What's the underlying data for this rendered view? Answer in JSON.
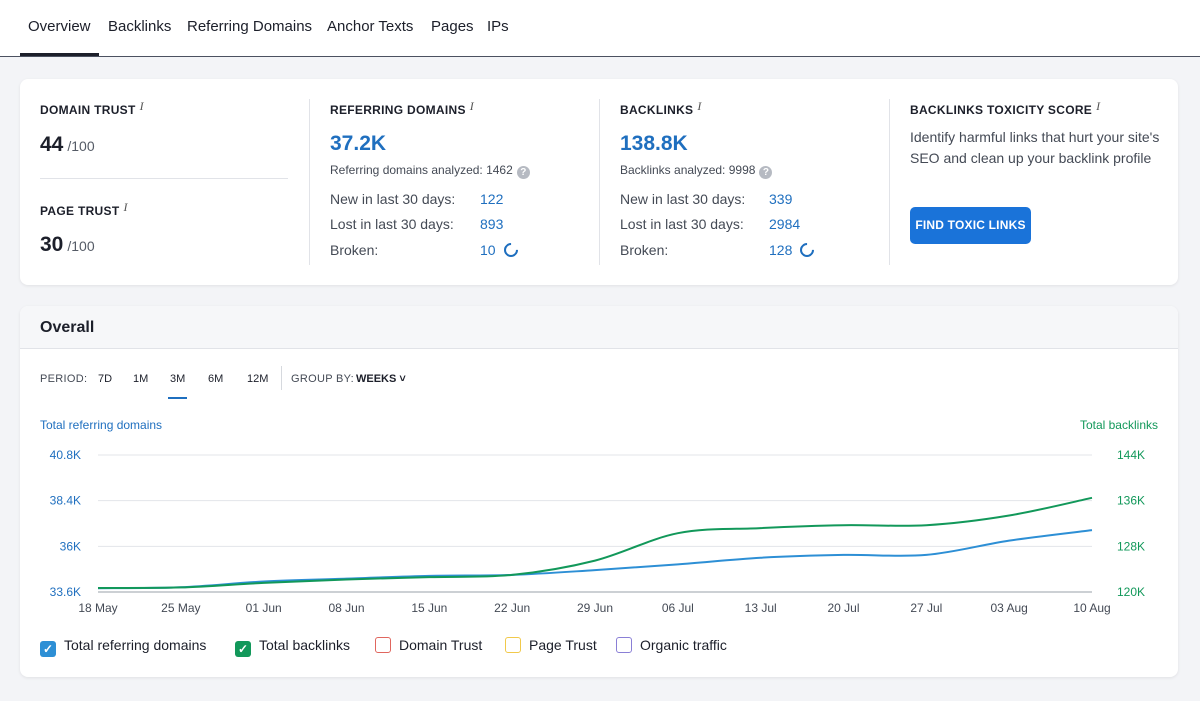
{
  "tabs": [
    "Overview",
    "Backlinks",
    "Referring Domains",
    "Anchor Texts",
    "Pages",
    "IPs"
  ],
  "domain_trust": {
    "label": "DOMAIN TRUST",
    "info": "i",
    "value": "44",
    "denominator": "/100"
  },
  "page_trust": {
    "label": "PAGE TRUST",
    "info": "i",
    "value": "30",
    "denominator": "/100"
  },
  "referring_domains": {
    "label": "REFERRING DOMAINS",
    "info": "i",
    "value": "37.2K",
    "analyzed": "Referring domains analyzed: 1462",
    "help": "?",
    "rows": [
      {
        "label": "New in last 30 days:",
        "value": "122"
      },
      {
        "label": "Lost in last 30 days:",
        "value": "893"
      },
      {
        "label": "Broken:",
        "value": "10"
      }
    ]
  },
  "backlinks": {
    "label": "BACKLINKS",
    "info": "i",
    "value": "138.8K",
    "analyzed": "Backlinks analyzed: 9998",
    "help": "?",
    "rows": [
      {
        "label": "New in last 30 days:",
        "value": "339"
      },
      {
        "label": "Lost in last 30 days:",
        "value": "2984"
      },
      {
        "label": "Broken:",
        "value": "128"
      }
    ]
  },
  "toxicity": {
    "label": "BACKLINKS TOXICITY SCORE",
    "info": "i",
    "description": "Identify harmful links that hurt your site's SEO and clean up your backlink profile",
    "button": "FIND TOXIC LINKS"
  },
  "overall": {
    "title": "Overall",
    "period_label": "PERIOD:",
    "periods": [
      "7D",
      "1M",
      "3M",
      "6M",
      "12M"
    ],
    "active_period": "3M",
    "group_label": "GROUP BY:",
    "group_value": "WEEKS",
    "chevron": "˅"
  },
  "colors": {
    "blue": "#2d8fd5",
    "green": "#12985a",
    "link": "#1f6fbf",
    "red": "#e0665e",
    "yellow": "#f1c94b",
    "purple": "#8a7fd6"
  },
  "chart_data": {
    "type": "line",
    "left_axis_title": "Total referring domains",
    "right_axis_title": "Total backlinks",
    "x": [
      "18 May",
      "25 May",
      "01 Jun",
      "08 Jun",
      "15 Jun",
      "22 Jun",
      "29 Jun",
      "06 Jul",
      "13 Jul",
      "20 Jul",
      "27 Jul",
      "03 Aug",
      "10 Aug"
    ],
    "y_left_ticks": [
      "40.8K",
      "38.4K",
      "36K",
      "33.6K"
    ],
    "y_left_range": [
      33600,
      40800
    ],
    "y_right_ticks": [
      "144K",
      "136K",
      "128K",
      "120K"
    ],
    "y_right_range": [
      120000,
      144000
    ],
    "series": [
      {
        "name": "Total referring domains",
        "axis": "left",
        "color": "#2d8fd5",
        "values": [
          33800,
          33850,
          34150,
          34300,
          34450,
          34500,
          34750,
          35050,
          35400,
          35550,
          35550,
          36300,
          36850
        ]
      },
      {
        "name": "Total backlinks",
        "axis": "right",
        "color": "#12985a",
        "values": [
          120700,
          120800,
          121600,
          122200,
          122600,
          123000,
          125500,
          130300,
          131200,
          131700,
          131700,
          133400,
          136500
        ]
      }
    ],
    "legend": [
      {
        "name": "Total referring domains",
        "checked": true,
        "color": "#2d8fd5"
      },
      {
        "name": "Total backlinks",
        "checked": true,
        "color": "#12985a"
      },
      {
        "name": "Domain Trust",
        "checked": false,
        "color": "#e0665e"
      },
      {
        "name": "Page Trust",
        "checked": false,
        "color": "#f1c94b"
      },
      {
        "name": "Organic traffic",
        "checked": false,
        "color": "#8a7fd6"
      }
    ],
    "check_glyph": "✓"
  }
}
